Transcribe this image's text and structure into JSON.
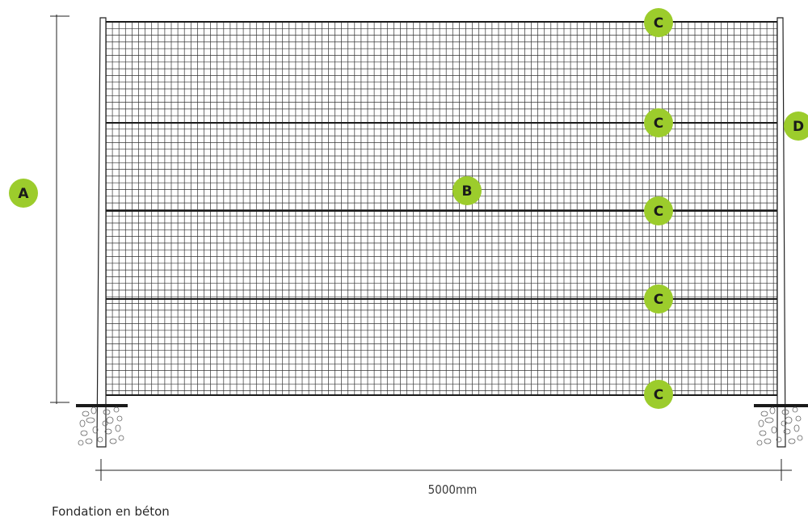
{
  "diagram": {
    "callouts": {
      "A": "A",
      "B": "B",
      "C": "C",
      "D": "D"
    },
    "dimension_label": "5000mm",
    "caption": "Fondation en béton",
    "colors": {
      "callout_fill": "#9ccc2c",
      "line": "#1a1a1a",
      "mesh": "#333333"
    }
  }
}
